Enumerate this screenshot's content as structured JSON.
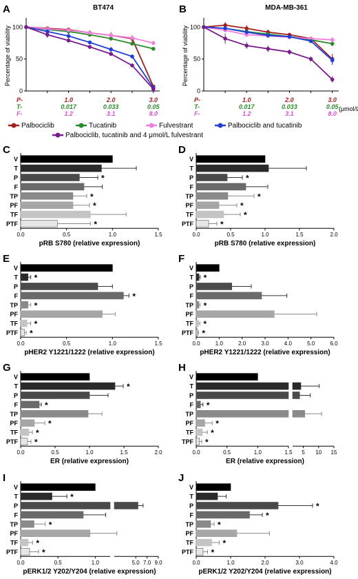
{
  "figure": {
    "legend": [
      {
        "label": "Palbociclib",
        "color": "#a31e1e"
      },
      {
        "label": "Tucatinib",
        "color": "#2a8a2a"
      },
      {
        "label": "Fulvestrant",
        "color": "#f07fe0"
      },
      {
        "label": "Palbociclib and tucatinib",
        "color": "#1f3fd6"
      },
      {
        "label": "Palbociclib, tucatinib and 4 μmol/L fulvestrant",
        "color": "#7a1d8c"
      }
    ],
    "dose_rows": [
      {
        "prefix": "P-",
        "color": "#a31e1e",
        "values": [
          "1.0",
          "2.0",
          "3.0"
        ]
      },
      {
        "prefix": "T-",
        "color": "#2a8a2a",
        "values": [
          "0.017",
          "0.033",
          "0.05"
        ]
      },
      {
        "prefix": "F-",
        "color": "#d94fd0",
        "values": [
          "1.2",
          "3.1",
          "8.0"
        ]
      }
    ],
    "dose_unit": "(μmol/L)"
  },
  "chart_data": [
    {
      "panel": "A",
      "type": "line",
      "title": "BT474",
      "ylabel": "Percentage of viability",
      "ylim": [
        0,
        110
      ],
      "yticks": [
        0,
        50,
        100
      ],
      "x": [
        0,
        0.5,
        1,
        1.5,
        2,
        2.5,
        3
      ],
      "series": [
        {
          "name": "Palbociclib",
          "color": "#a31e1e",
          "values": [
            100,
            98,
            96,
            91,
            87,
            82,
            7
          ],
          "err": [
            2,
            2,
            3,
            4,
            5,
            5,
            2
          ]
        },
        {
          "name": "Tucatinib",
          "color": "#2a8a2a",
          "values": [
            100,
            96,
            93,
            88,
            82,
            74,
            66
          ],
          "err": [
            2,
            2,
            2,
            3,
            3,
            3,
            2
          ]
        },
        {
          "name": "Fulvestrant",
          "color": "#f07fe0",
          "values": [
            100,
            97,
            95,
            91,
            87,
            83,
            75
          ],
          "err": [
            2,
            2,
            3,
            3,
            3,
            3,
            3
          ]
        },
        {
          "name": "Palbociclib and tucatinib",
          "color": "#1f3fd6",
          "values": [
            100,
            93,
            86,
            76,
            65,
            54,
            5
          ],
          "err": [
            2,
            4,
            4,
            3,
            4,
            3,
            1
          ]
        },
        {
          "name": "Palbociclib, tucatinib and 4 μmol/L fulvestrant",
          "color": "#7a1d8c",
          "values": [
            100,
            88,
            79,
            69,
            58,
            40,
            3
          ],
          "err": [
            2,
            5,
            3,
            3,
            2,
            2,
            1
          ]
        }
      ]
    },
    {
      "panel": "B",
      "type": "line",
      "title": "MDA-MB-361",
      "ylabel": "Percentage of viability",
      "ylim": [
        0,
        110
      ],
      "yticks": [
        0,
        50,
        100
      ],
      "x": [
        0,
        0.5,
        1,
        1.5,
        2,
        2.5,
        3
      ],
      "series": [
        {
          "name": "Palbociclib",
          "color": "#a31e1e",
          "values": [
            100,
            103,
            98,
            92,
            88,
            82,
            50
          ],
          "err": [
            3,
            5,
            5,
            4,
            3,
            3,
            8
          ]
        },
        {
          "name": "Tucatinib",
          "color": "#2a8a2a",
          "values": [
            100,
            98,
            93,
            89,
            85,
            80,
            74
          ],
          "err": [
            2,
            3,
            3,
            3,
            3,
            3,
            4
          ]
        },
        {
          "name": "Fulvestrant",
          "color": "#f07fe0",
          "values": [
            100,
            95,
            88,
            86,
            84,
            82,
            80
          ],
          "err": [
            2,
            3,
            3,
            3,
            3,
            3,
            4
          ]
        },
        {
          "name": "Palbociclib and tucatinib",
          "color": "#1f3fd6",
          "values": [
            100,
            98,
            92,
            87,
            85,
            78,
            48
          ],
          "err": [
            2,
            3,
            3,
            3,
            3,
            3,
            7
          ]
        },
        {
          "name": "Palbociclib, tucatinib and 4 μmol/L fulvestrant",
          "color": "#7a1d8c",
          "values": [
            100,
            82,
            71,
            66,
            61,
            50,
            18
          ],
          "err": [
            3,
            8,
            5,
            5,
            4,
            4,
            5
          ]
        }
      ]
    },
    {
      "panel": "C",
      "type": "bar",
      "orientation": "horizontal",
      "categories": [
        "V",
        "T",
        "P",
        "F",
        "TP",
        "PF",
        "TF",
        "PTF"
      ],
      "values": [
        1.0,
        0.88,
        0.64,
        0.69,
        0.57,
        0.57,
        0.76,
        0.4
      ],
      "err": [
        0,
        0.38,
        0.2,
        0.2,
        0.15,
        0.18,
        0.39,
        0.36
      ],
      "sig": [
        false,
        false,
        true,
        false,
        true,
        true,
        false,
        true
      ],
      "xlabel": "pRB S780 (relative expression)",
      "xlim": [
        0,
        1.5
      ],
      "ticks": [
        0.0,
        0.5,
        1.0,
        1.5
      ]
    },
    {
      "panel": "D",
      "type": "bar",
      "orientation": "horizontal",
      "categories": [
        "V",
        "T",
        "P",
        "F",
        "TP",
        "PF",
        "TF",
        "PTF"
      ],
      "values": [
        1.0,
        1.05,
        0.45,
        0.72,
        0.46,
        0.33,
        0.4,
        0.18
      ],
      "err": [
        0,
        0.55,
        0.22,
        0.32,
        0.38,
        0.26,
        0.24,
        0.12
      ],
      "sig": [
        false,
        false,
        true,
        false,
        true,
        true,
        true,
        true
      ],
      "xlabel": "pRB S780 (relative expression)",
      "xlim": [
        0,
        2.0
      ],
      "ticks": [
        0.0,
        0.5,
        1.0,
        1.5,
        2.0
      ]
    },
    {
      "panel": "E",
      "type": "bar",
      "orientation": "horizontal",
      "categories": [
        "V",
        "T",
        "P",
        "F",
        "TP",
        "PF",
        "TF",
        "PTF"
      ],
      "values": [
        1.0,
        0.08,
        0.84,
        1.12,
        0.08,
        0.89,
        0.07,
        0.04
      ],
      "err": [
        0,
        0.03,
        0.16,
        0.06,
        0.03,
        0.14,
        0.04,
        0.02
      ],
      "sig": [
        false,
        true,
        false,
        true,
        true,
        false,
        true,
        true
      ],
      "xlabel": "pHER2 Y1221/1222 (relative expression)",
      "xlim": [
        0,
        1.5
      ],
      "ticks": [
        0.0,
        0.5,
        1.0,
        1.5
      ]
    },
    {
      "panel": "F",
      "type": "bar",
      "orientation": "horizontal",
      "categories": [
        "V",
        "T",
        "P",
        "F",
        "TP",
        "PF",
        "TF",
        "PTF"
      ],
      "values": [
        1.0,
        0.12,
        1.55,
        2.85,
        0.12,
        3.4,
        0.1,
        0.06
      ],
      "err": [
        0,
        0.05,
        0.85,
        1.1,
        0.05,
        1.85,
        0.06,
        0.04
      ],
      "sig": [
        false,
        true,
        false,
        false,
        true,
        false,
        true,
        true
      ],
      "xlabel": "pHER2 Y1221/1222 (relative expression)",
      "xlim": [
        0,
        6.0
      ],
      "ticks": [
        0.0,
        1.0,
        2.0,
        3.0,
        4.0,
        5.0,
        6.0
      ]
    },
    {
      "panel": "G",
      "type": "bar",
      "orientation": "horizontal",
      "categories": [
        "V",
        "T",
        "P",
        "F",
        "TP",
        "PF",
        "TF",
        "PTF"
      ],
      "values": [
        1.0,
        1.37,
        1.0,
        0.27,
        0.98,
        0.2,
        0.12,
        0.1
      ],
      "err": [
        0,
        0.12,
        0.27,
        0.03,
        0.2,
        0.15,
        0.05,
        0.05
      ],
      "sig": [
        false,
        true,
        false,
        true,
        false,
        true,
        true,
        true
      ],
      "xlabel": "ER (relative expression)",
      "xlim": [
        0,
        2.0
      ],
      "ticks": [
        0.0,
        0.5,
        1.0,
        1.5,
        2.0
      ]
    },
    {
      "panel": "H",
      "type": "bar",
      "orientation": "horizontal",
      "axis_break": true,
      "categories": [
        "V",
        "T",
        "P",
        "F",
        "TP",
        "PF",
        "TF",
        "TPF"
      ],
      "values": [
        1.0,
        4.2,
        3.8,
        0.07,
        5.5,
        0.14,
        0.1,
        0.05
      ],
      "err": [
        0,
        6.0,
        3.5,
        0.04,
        5.5,
        0.12,
        0.08,
        0.04
      ],
      "sig": [
        false,
        false,
        false,
        true,
        false,
        true,
        true,
        true
      ],
      "xlabel": "ER (relative expression)",
      "ticks": [
        "0.0",
        "0.5",
        "1.0",
        "1.5",
        "5",
        "10",
        "15"
      ]
    },
    {
      "panel": "I",
      "type": "bar",
      "orientation": "horizontal",
      "axis_break": true,
      "categories": [
        "V",
        "T",
        "P",
        "F",
        "TP",
        "PF",
        "TF",
        "PTF"
      ],
      "values": [
        1.0,
        0.42,
        5.4,
        0.84,
        0.18,
        0.93,
        0.1,
        0.12
      ],
      "err": [
        0,
        0.2,
        0.9,
        0.3,
        0.15,
        0.72,
        0.06,
        0.12
      ],
      "sig": [
        false,
        true,
        false,
        false,
        true,
        false,
        true,
        true
      ],
      "xlabel": "pERK1/2 Y202/Y204 (relative expression)",
      "ticks": [
        "0.0",
        "0.5",
        "1.0",
        "5.0",
        "7.0",
        "9.0"
      ]
    },
    {
      "panel": "J",
      "type": "bar",
      "orientation": "horizontal",
      "categories": [
        "V",
        "T",
        "P",
        "F",
        "TP",
        "PF",
        "TF",
        "PTF"
      ],
      "values": [
        1.0,
        0.62,
        2.38,
        1.55,
        0.42,
        1.18,
        0.45,
        0.2
      ],
      "err": [
        0,
        0.25,
        1.0,
        0.37,
        0.1,
        0.95,
        0.22,
        0.13
      ],
      "sig": [
        false,
        false,
        true,
        true,
        true,
        false,
        true,
        true
      ],
      "xlabel": "pERK1/2 Y202/Y204 (relative expression)",
      "xlim": [
        0,
        4.0
      ],
      "ticks": [
        0.0,
        1.0,
        2.0,
        3.0,
        4.0
      ]
    }
  ]
}
